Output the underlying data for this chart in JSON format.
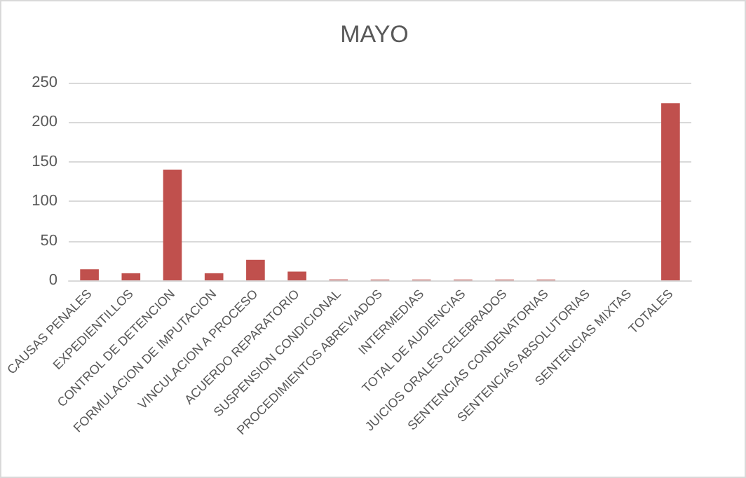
{
  "chart_data": {
    "type": "bar",
    "title": "MAYO",
    "categories": [
      "CAUSAS PENALES",
      "EXPEDIENTILLOS",
      "CONTROL DE DETENCION",
      "FORMULACION DE IMPUTACION",
      "VINCULACION A PROCESO",
      "ACUERDO REPARATORIO",
      "SUSPENSION CONDICIONAL",
      "PROCEDIMIENTOS ABREVIADOS",
      "INTERMEDIAS",
      "TOTAL DE AUDIENCIAS",
      "JUICIOS ORALES CELEBRADOS",
      "SENTENCIAS CONDENATORIAS",
      "SENTENCIAS ABSOLUTORIAS",
      "SENTENCIAS MIXTAS",
      "TOTALES"
    ],
    "values": [
      14,
      9,
      140,
      9,
      26,
      11,
      1,
      1,
      1,
      1,
      1,
      1,
      0,
      null,
      224
    ],
    "color": "#c0504d",
    "ylim": [
      0,
      250
    ],
    "yticks": [
      0,
      50,
      100,
      150,
      200,
      250
    ],
    "grid": "y"
  }
}
